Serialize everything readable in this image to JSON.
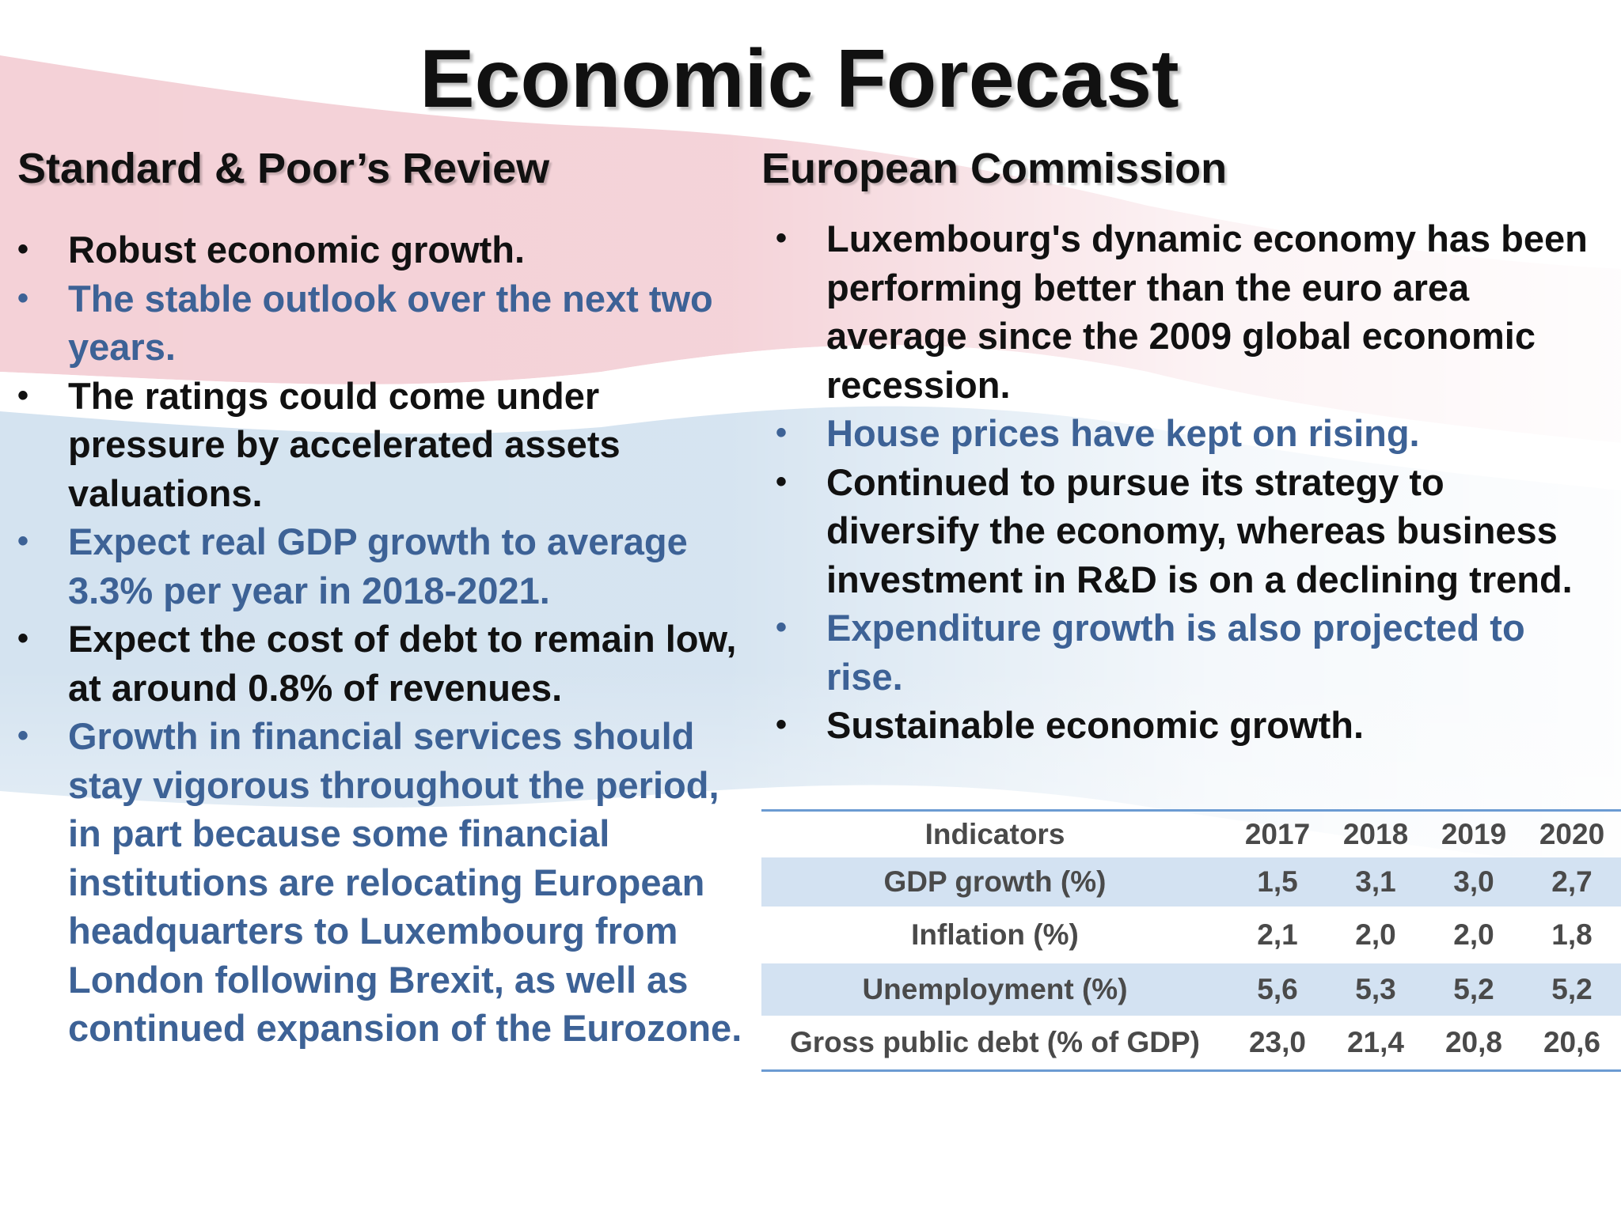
{
  "slide": {
    "title": "Economic Forecast"
  },
  "left_column": {
    "heading": "Standard & Poor’s Review",
    "bullets": [
      {
        "text": "Robust economic growth.",
        "color": "#111111"
      },
      {
        "text": "The stable outlook over the next two years.",
        "color": "#3d6296"
      },
      {
        "text": "The ratings could come under pressure by accelerated assets valuations.",
        "color": "#111111"
      },
      {
        "text": "Expect real GDP growth to average 3.3% per year in 2018-2021.",
        "color": "#3d6296"
      },
      {
        "text": "Expect the cost of debt to remain low, at around 0.8% of revenues.",
        "color": "#111111"
      },
      {
        "text": "Growth in financial services should stay vigorous throughout the period, in part because some financial institutions are relocating European headquarters to Luxembourg from London following Brexit, as well as continued expansion of the Eurozone.",
        "color": "#3d6296"
      }
    ]
  },
  "right_column": {
    "heading": "European Commission",
    "bullets": [
      {
        "text": "Luxembourg's dynamic economy has been performing better than the euro area average since the 2009 global economic recession.",
        "color": "#111111"
      },
      {
        "text": "House prices have kept on rising.",
        "color": "#3d6296"
      },
      {
        "text": "Continued to pursue its strategy to diversify the economy, whereas business investment in R&D is on a declining trend.",
        "color": "#111111"
      },
      {
        "text": "Expenditure growth is also projected to rise.",
        "color": "#3d6296"
      },
      {
        "text": "Sustainable economic growth.",
        "color": "#111111"
      }
    ]
  },
  "bullet_glyph": "•",
  "indicators_table": {
    "headers": [
      "Indicators",
      "2017",
      "2018",
      "2019",
      "2020"
    ],
    "rows": [
      [
        "GDP growth (%)",
        "1,5",
        "3,1",
        "3,0",
        "2,7"
      ],
      [
        "Inflation (%)",
        "2,1",
        "2,0",
        "2,0",
        "1,8"
      ],
      [
        "Unemployment (%)",
        "5,6",
        "5,3",
        "5,2",
        "5,2"
      ],
      [
        "Gross public debt (% of GDP)",
        "23,0",
        "21,4",
        "20,8",
        "20,6"
      ]
    ]
  },
  "theme": {
    "flag_red": "#f2c9d0",
    "flag_blue": "#cfe0ee",
    "accent_blue": "#6b9bd2",
    "text_dark": "#111111",
    "text_blue": "#3d6296"
  }
}
